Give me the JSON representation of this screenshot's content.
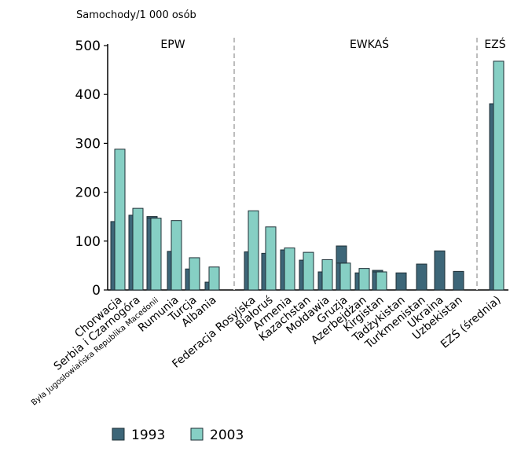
{
  "chart_data": {
    "type": "bar",
    "ylabel": "Samochody/1 000 osób",
    "ylim": [
      0,
      500
    ],
    "yticks": [
      "0",
      "100",
      "200",
      "300",
      "400",
      "500"
    ],
    "group_labels": [
      "EPW",
      "EWKAŚ",
      "EZŚ"
    ],
    "categories": [
      "Chorwacja",
      "Serbia i Czarnogóra",
      "Była Jugosłowiańska Republika Macedonii",
      "Rumunia",
      "Turcja",
      "Albania",
      "Federacja Rosyjska",
      "Białoruś",
      "Armenia",
      "Kazachstan",
      "Mołdawia",
      "Gruzja",
      "Azerbejdżan",
      "Kirgistan",
      "Tadżykistan",
      "Turkmenistan",
      "Ukraina",
      "Uzbekistan",
      "EZŚ (średnia)"
    ],
    "series": [
      {
        "name": "1993",
        "color": "#3d6678",
        "values": [
          140,
          153,
          150,
          79,
          43,
          16,
          78,
          75,
          82,
          61,
          37,
          90,
          35,
          40,
          35,
          53,
          80,
          38,
          381
        ]
      },
      {
        "name": "2003",
        "color": "#86cfc4",
        "values": [
          288,
          167,
          147,
          142,
          66,
          47,
          162,
          129,
          86,
          77,
          62,
          55,
          44,
          37,
          null,
          null,
          null,
          null,
          468
        ]
      }
    ],
    "legend": "bottom-left",
    "grid": false
  }
}
